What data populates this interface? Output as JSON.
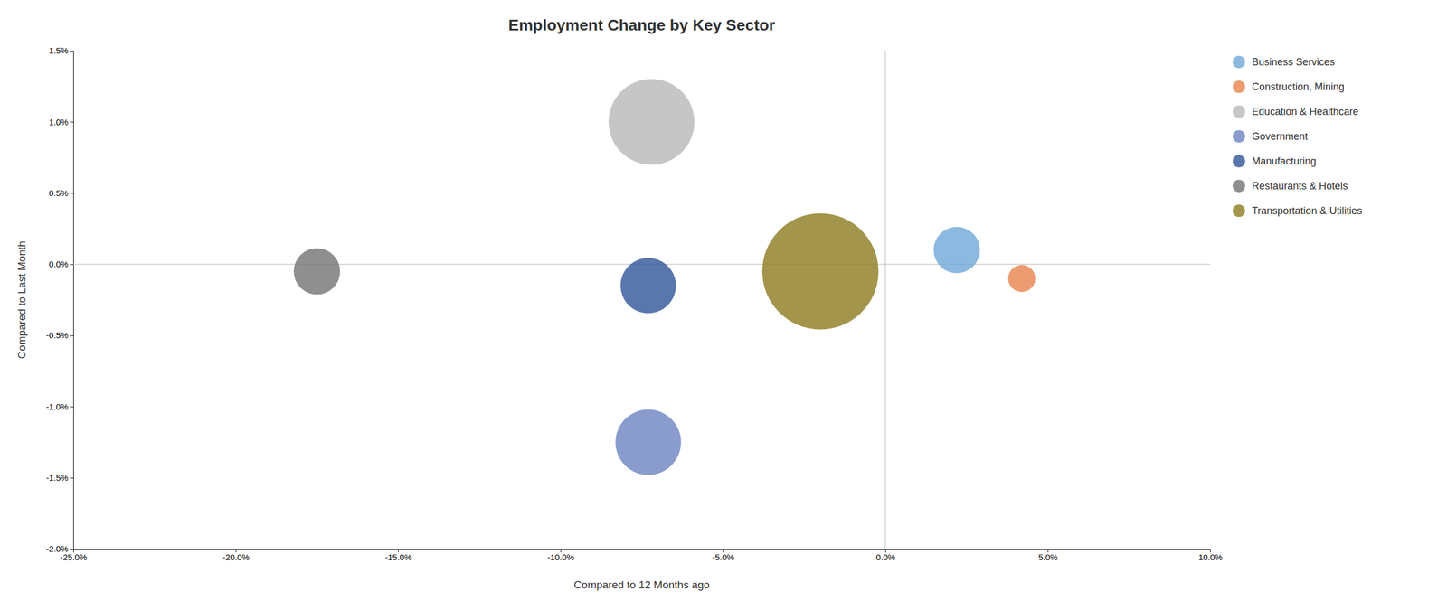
{
  "chart_data": {
    "type": "scatter",
    "title": "Employment Change by Key Sector",
    "xlabel": "Compared to 12 Months ago",
    "ylabel": "Compared to Last Month",
    "xlim": [
      -0.25,
      0.1
    ],
    "ylim": [
      -0.02,
      0.015
    ],
    "xticks": [
      {
        "value": -0.25,
        "label": "-25.0%"
      },
      {
        "value": -0.2,
        "label": "-20.0%"
      },
      {
        "value": -0.15,
        "label": "-15.0%"
      },
      {
        "value": -0.1,
        "label": "-10.0%"
      },
      {
        "value": -0.05,
        "label": "-5.0%"
      },
      {
        "value": 0,
        "label": "0.0%"
      },
      {
        "value": 0.05,
        "label": "5.0%"
      },
      {
        "value": 0.1,
        "label": "10.0%"
      }
    ],
    "yticks": [
      {
        "value": -0.02,
        "label": "-2.0%"
      },
      {
        "value": -0.015,
        "label": "-1.5%"
      },
      {
        "value": -0.01,
        "label": "-1.0%"
      },
      {
        "value": -0.005,
        "label": "-0.5%"
      },
      {
        "value": 0,
        "label": "0.0%"
      },
      {
        "value": 0.005,
        "label": "0.5%"
      },
      {
        "value": 0.01,
        "label": "1.0%"
      },
      {
        "value": 0.015,
        "label": "1.5%"
      }
    ],
    "grid": false,
    "legend": "right",
    "series": [
      {
        "name": "Business Services",
        "color": "#6fa8d8",
        "x": [
          0.022
        ],
        "values": [
          0.001
        ],
        "sizes": [
          3500
        ]
      },
      {
        "name": "Construction, Mining",
        "color": "#e8834e",
        "x": [
          0.042
        ],
        "values": [
          -0.001
        ],
        "sizes": [
          1200
        ]
      },
      {
        "name": "Education & Healthcare",
        "color": "#b8b8b8",
        "x": [
          -0.072
        ],
        "values": [
          0.01
        ],
        "sizes": [
          12000
        ]
      },
      {
        "name": "Government",
        "color": "#6b83c1",
        "x": [
          -0.073
        ],
        "values": [
          -0.0125
        ],
        "sizes": [
          7000
        ]
      },
      {
        "name": "Manufacturing",
        "color": "#2f5597",
        "x": [
          -0.073
        ],
        "values": [
          -0.0015
        ],
        "sizes": [
          5000
        ]
      },
      {
        "name": "Restaurants & Hotels",
        "color": "#737373",
        "x": [
          -0.175
        ],
        "values": [
          -0.0005
        ],
        "sizes": [
          3500
        ]
      },
      {
        "name": "Transportation & Utilities",
        "color": "#8c7a1e",
        "x": [
          -0.02
        ],
        "values": [
          -0.0005
        ],
        "sizes": [
          22000
        ]
      }
    ]
  }
}
